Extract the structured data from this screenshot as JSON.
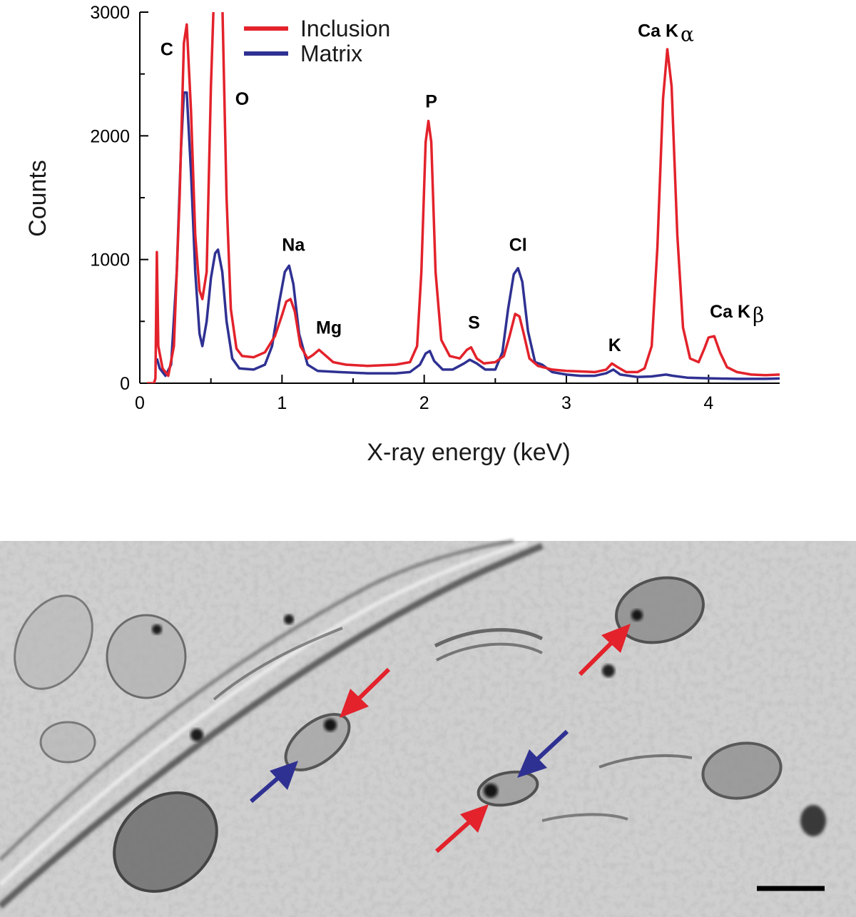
{
  "chart_data": {
    "type": "line",
    "xlabel": "X-ray energy (keV)",
    "ylabel": "Counts",
    "xlim": [
      0,
      4.5
    ],
    "ylim": [
      0,
      3000
    ],
    "x_ticks": [
      0,
      1,
      2,
      3,
      4
    ],
    "x_tick_labels": [
      "0",
      "1",
      "2",
      "3",
      "4"
    ],
    "y_ticks": [
      0,
      1000,
      2000,
      3000
    ],
    "y_tick_labels": [
      "0",
      "1000",
      "2000",
      "3000"
    ],
    "grid": false,
    "legend_position": "top-left",
    "series": [
      {
        "name": "Inclusion",
        "color": "#e3222b",
        "points": [
          [
            0.05,
            0
          ],
          [
            0.1,
            0
          ],
          [
            0.11,
            40
          ],
          [
            0.12,
            1060
          ],
          [
            0.13,
            300
          ],
          [
            0.16,
            120
          ],
          [
            0.2,
            60
          ],
          [
            0.24,
            300
          ],
          [
            0.28,
            1500
          ],
          [
            0.31,
            2750
          ],
          [
            0.33,
            2900
          ],
          [
            0.36,
            2200
          ],
          [
            0.39,
            1200
          ],
          [
            0.42,
            750
          ],
          [
            0.44,
            680
          ],
          [
            0.47,
            900
          ],
          [
            0.5,
            2400
          ],
          [
            0.52,
            3100
          ],
          [
            0.55,
            3100
          ],
          [
            0.58,
            3100
          ],
          [
            0.61,
            1500
          ],
          [
            0.64,
            600
          ],
          [
            0.68,
            280
          ],
          [
            0.72,
            220
          ],
          [
            0.8,
            210
          ],
          [
            0.88,
            250
          ],
          [
            0.95,
            380
          ],
          [
            1.0,
            550
          ],
          [
            1.03,
            660
          ],
          [
            1.06,
            680
          ],
          [
            1.09,
            580
          ],
          [
            1.13,
            300
          ],
          [
            1.18,
            200
          ],
          [
            1.22,
            230
          ],
          [
            1.26,
            270
          ],
          [
            1.3,
            230
          ],
          [
            1.36,
            170
          ],
          [
            1.45,
            150
          ],
          [
            1.6,
            140
          ],
          [
            1.8,
            150
          ],
          [
            1.9,
            170
          ],
          [
            1.95,
            300
          ],
          [
            1.98,
            900
          ],
          [
            2.01,
            1950
          ],
          [
            2.03,
            2120
          ],
          [
            2.05,
            1950
          ],
          [
            2.08,
            900
          ],
          [
            2.12,
            350
          ],
          [
            2.18,
            220
          ],
          [
            2.25,
            200
          ],
          [
            2.3,
            270
          ],
          [
            2.33,
            290
          ],
          [
            2.37,
            200
          ],
          [
            2.42,
            160
          ],
          [
            2.5,
            170
          ],
          [
            2.56,
            220
          ],
          [
            2.6,
            380
          ],
          [
            2.64,
            560
          ],
          [
            2.67,
            540
          ],
          [
            2.7,
            400
          ],
          [
            2.74,
            200
          ],
          [
            2.8,
            140
          ],
          [
            2.9,
            110
          ],
          [
            3.0,
            100
          ],
          [
            3.1,
            95
          ],
          [
            3.2,
            90
          ],
          [
            3.28,
            110
          ],
          [
            3.32,
            160
          ],
          [
            3.36,
            130
          ],
          [
            3.42,
            90
          ],
          [
            3.5,
            90
          ],
          [
            3.55,
            120
          ],
          [
            3.6,
            300
          ],
          [
            3.64,
            1100
          ],
          [
            3.68,
            2300
          ],
          [
            3.71,
            2700
          ],
          [
            3.74,
            2400
          ],
          [
            3.78,
            1200
          ],
          [
            3.82,
            450
          ],
          [
            3.87,
            200
          ],
          [
            3.93,
            170
          ],
          [
            3.97,
            280
          ],
          [
            4.0,
            370
          ],
          [
            4.04,
            380
          ],
          [
            4.08,
            250
          ],
          [
            4.13,
            130
          ],
          [
            4.2,
            90
          ],
          [
            4.3,
            70
          ],
          [
            4.4,
            65
          ],
          [
            4.5,
            70
          ]
        ]
      },
      {
        "name": "Matrix",
        "color": "#2f3192",
        "points": [
          [
            0.12,
            200
          ],
          [
            0.14,
            120
          ],
          [
            0.18,
            60
          ],
          [
            0.22,
            150
          ],
          [
            0.26,
            900
          ],
          [
            0.29,
            1900
          ],
          [
            0.31,
            2350
          ],
          [
            0.33,
            2350
          ],
          [
            0.36,
            1700
          ],
          [
            0.39,
            900
          ],
          [
            0.42,
            400
          ],
          [
            0.44,
            300
          ],
          [
            0.47,
            500
          ],
          [
            0.5,
            850
          ],
          [
            0.53,
            1050
          ],
          [
            0.55,
            1080
          ],
          [
            0.58,
            900
          ],
          [
            0.61,
            500
          ],
          [
            0.65,
            200
          ],
          [
            0.7,
            120
          ],
          [
            0.8,
            110
          ],
          [
            0.88,
            150
          ],
          [
            0.93,
            300
          ],
          [
            0.98,
            650
          ],
          [
            1.02,
            900
          ],
          [
            1.05,
            950
          ],
          [
            1.08,
            800
          ],
          [
            1.12,
            400
          ],
          [
            1.18,
            150
          ],
          [
            1.25,
            100
          ],
          [
            1.4,
            90
          ],
          [
            1.6,
            80
          ],
          [
            1.8,
            80
          ],
          [
            1.9,
            90
          ],
          [
            1.97,
            150
          ],
          [
            2.01,
            240
          ],
          [
            2.04,
            260
          ],
          [
            2.07,
            180
          ],
          [
            2.13,
            110
          ],
          [
            2.2,
            110
          ],
          [
            2.28,
            160
          ],
          [
            2.32,
            190
          ],
          [
            2.37,
            160
          ],
          [
            2.43,
            110
          ],
          [
            2.5,
            110
          ],
          [
            2.55,
            250
          ],
          [
            2.59,
            600
          ],
          [
            2.63,
            880
          ],
          [
            2.66,
            930
          ],
          [
            2.69,
            820
          ],
          [
            2.73,
            420
          ],
          [
            2.78,
            170
          ],
          [
            2.83,
            150
          ],
          [
            2.9,
            90
          ],
          [
            3.0,
            70
          ],
          [
            3.1,
            60
          ],
          [
            3.2,
            60
          ],
          [
            3.28,
            80
          ],
          [
            3.33,
            110
          ],
          [
            3.38,
            70
          ],
          [
            3.5,
            50
          ],
          [
            3.6,
            55
          ],
          [
            3.7,
            70
          ],
          [
            3.75,
            60
          ],
          [
            3.85,
            45
          ],
          [
            4.0,
            40
          ],
          [
            4.2,
            35
          ],
          [
            4.4,
            35
          ],
          [
            4.5,
            38
          ]
        ]
      }
    ],
    "annotations": [
      {
        "text": "C",
        "x": 0.19,
        "y": 2650
      },
      {
        "text": "O",
        "x": 0.72,
        "y": 2250
      },
      {
        "text": "Na",
        "x": 1.08,
        "y": 1070
      },
      {
        "text": "Mg",
        "x": 1.33,
        "y": 400
      },
      {
        "text": "P",
        "x": 2.05,
        "y": 2230
      },
      {
        "text": "S",
        "x": 2.35,
        "y": 440
      },
      {
        "text": "Cl",
        "x": 2.66,
        "y": 1070
      },
      {
        "text": "K",
        "x": 3.34,
        "y": 260
      },
      {
        "text": "Ca K",
        "greek": "α",
        "x": 3.7,
        "y": 2800
      },
      {
        "text": "Ca K",
        "greek": "β",
        "x": 4.2,
        "y": 530
      }
    ]
  },
  "micrograph": {
    "scale_bar": "present",
    "arrows": [
      {
        "color": "#e3222b",
        "role": "inclusion"
      },
      {
        "color": "#e3222b",
        "role": "inclusion"
      },
      {
        "color": "#e3222b",
        "role": "inclusion"
      },
      {
        "color": "#2f3192",
        "role": "matrix"
      },
      {
        "color": "#2f3192",
        "role": "matrix"
      }
    ]
  }
}
